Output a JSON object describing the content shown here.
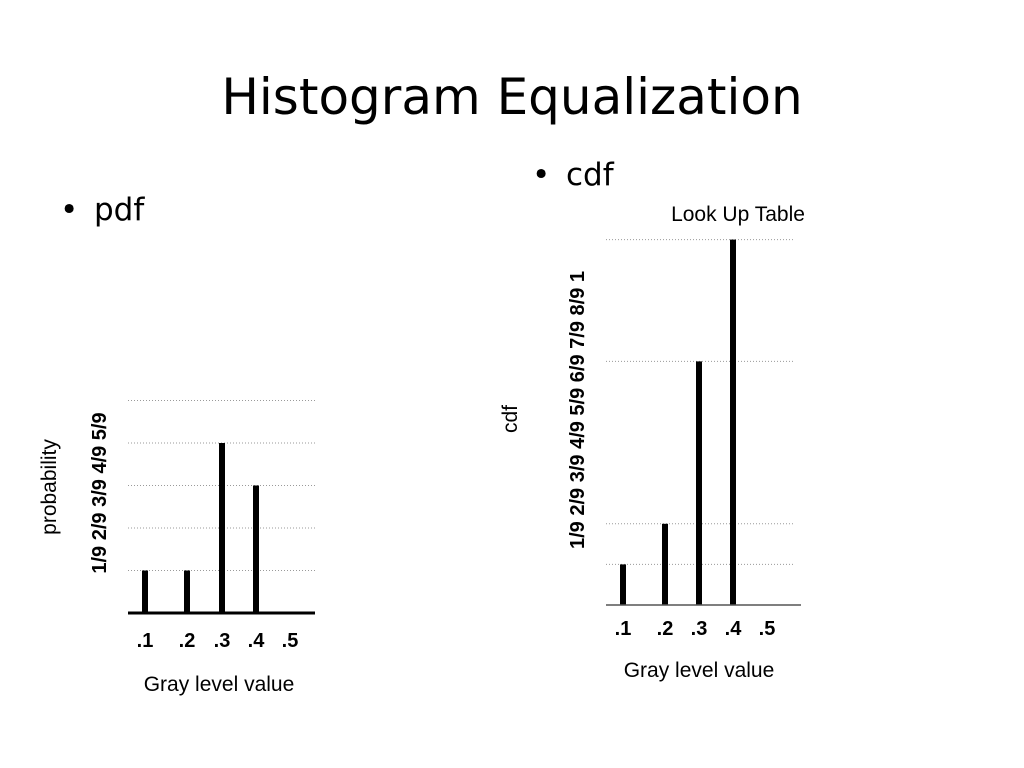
{
  "slide": {
    "title": "Histogram Equalization",
    "bullets": {
      "pdf": "pdf",
      "cdf": "cdf"
    }
  },
  "chart_data": [
    {
      "type": "bar",
      "title": "",
      "xlabel": "Gray level value",
      "ylabel": "probability",
      "categories": [
        ".1",
        ".2",
        ".3",
        ".4",
        ".5"
      ],
      "values": [
        1,
        1,
        4,
        3,
        0
      ],
      "y_ticks": [
        "1/9",
        "2/9",
        "3/9",
        "4/9",
        "5/9"
      ],
      "ylim": [
        0,
        5
      ],
      "grid": true,
      "colors": {
        "bar": "#000000",
        "grid": "#9a9a9a"
      }
    },
    {
      "type": "bar",
      "title": "Look Up Table",
      "xlabel": "Gray level value",
      "ylabel": "cdf",
      "categories": [
        ".1",
        ".2",
        ".3",
        ".4",
        ".5"
      ],
      "values": [
        1,
        2,
        6,
        9,
        0
      ],
      "y_ticks": [
        "1/9",
        "2/9",
        "3/9",
        "4/9",
        "5/9",
        "6/9",
        "7/9",
        "8/9",
        "1"
      ],
      "ylim": [
        0,
        9
      ],
      "grid": true,
      "grid_at": [
        1,
        2,
        6,
        9
      ],
      "colors": {
        "bar": "#000000",
        "grid": "#9a9a9a"
      }
    }
  ]
}
